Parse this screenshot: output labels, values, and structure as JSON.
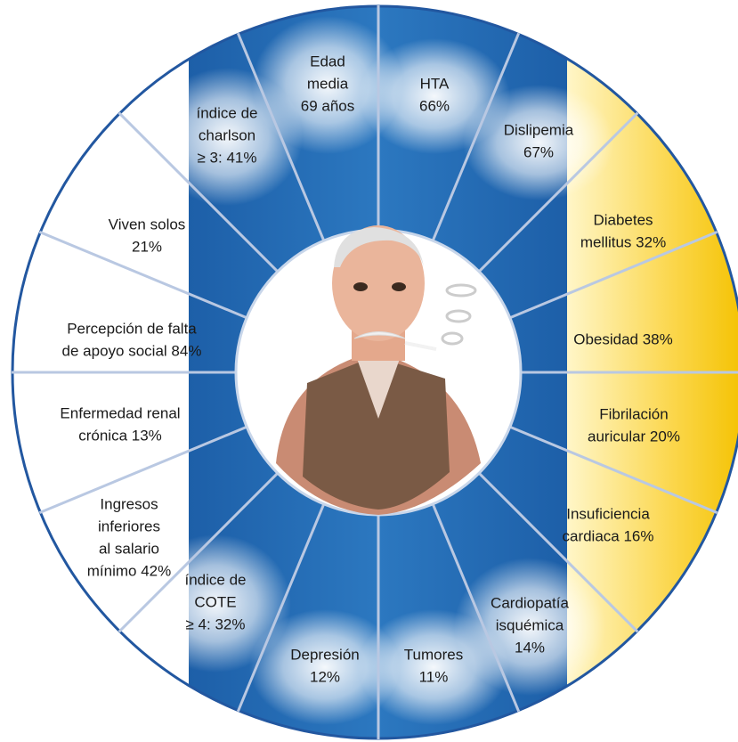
{
  "segments": [
    {
      "lines": [
        "Edad",
        "media",
        "69 años"
      ]
    },
    {
      "lines": [
        "HTA",
        "66%"
      ]
    },
    {
      "lines": [
        "Dislipemia",
        "67%"
      ]
    },
    {
      "lines": [
        "Diabetes",
        "mellitus 32%"
      ]
    },
    {
      "lines": [
        "Obesidad 38%"
      ]
    },
    {
      "lines": [
        "Fibrilación",
        "auricular 20%"
      ]
    },
    {
      "lines": [
        "Insuficiencia",
        "cardiaca 16%"
      ]
    },
    {
      "lines": [
        "Cardiopatía",
        "isquémica",
        "14%"
      ]
    },
    {
      "lines": [
        "Tumores",
        "11%"
      ]
    },
    {
      "lines": [
        "Depresión",
        "12%"
      ]
    },
    {
      "lines": [
        "índice de",
        "COTE",
        "≥ 4: 32%"
      ]
    },
    {
      "lines": [
        "Ingresos",
        "inferiores",
        "al salario",
        "mínimo 42%"
      ]
    },
    {
      "lines": [
        "Enfermedad renal",
        "crónica 13%"
      ]
    },
    {
      "lines": [
        "Percepción de falta",
        "de apoyo social 84%"
      ]
    },
    {
      "lines": [
        "Viven solos",
        "21%"
      ]
    },
    {
      "lines": [
        "índice de",
        "charlson",
        "≥ 3: 41%"
      ]
    }
  ]
}
